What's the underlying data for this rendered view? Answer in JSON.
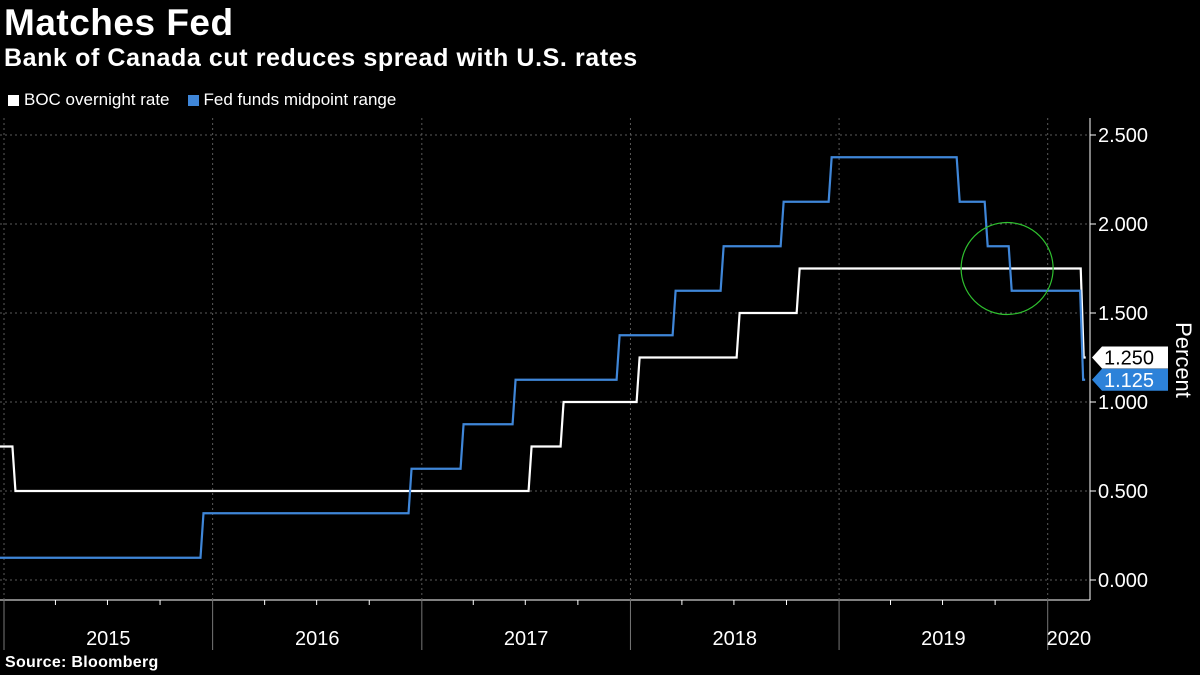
{
  "title": "Matches Fed",
  "subtitle": "Bank of Canada cut reduces spread with U.S. rates",
  "source": "Source: Bloomberg",
  "colors": {
    "boc": "#ffffff",
    "fed": "#3f86d8",
    "highlight": "#2fc02f",
    "grid": "#5a5a5a"
  },
  "chart_data": {
    "type": "line",
    "step": true,
    "ylabel": "Percent",
    "ylim": [
      0,
      2.5
    ],
    "yticks": [
      "0.000",
      "0.500",
      "1.000",
      "1.500",
      "2.000",
      "2.500"
    ],
    "x_range": [
      "2014-12-25",
      "2020-03-15"
    ],
    "x_year_labels": [
      "2015",
      "2016",
      "2017",
      "2018",
      "2019",
      "2020"
    ],
    "grid": true,
    "legend_position": "top-left",
    "series": [
      {
        "name": "BOC overnight rate",
        "last_label": "1.250",
        "points": [
          [
            "2014-12-25",
            0.75
          ],
          [
            "2015-01-21",
            0.5
          ],
          [
            "2016-12-31",
            0.5
          ],
          [
            "2017-07-12",
            0.75
          ],
          [
            "2017-09-06",
            1.0
          ],
          [
            "2018-01-17",
            1.25
          ],
          [
            "2018-07-11",
            1.5
          ],
          [
            "2018-10-24",
            1.75
          ],
          [
            "2020-03-04",
            1.25
          ]
        ]
      },
      {
        "name": "Fed funds midpoint range",
        "last_label": "1.125",
        "points": [
          [
            "2014-12-25",
            0.125
          ],
          [
            "2015-12-16",
            0.375
          ],
          [
            "2016-12-14",
            0.625
          ],
          [
            "2017-03-15",
            0.875
          ],
          [
            "2017-06-14",
            1.125
          ],
          [
            "2017-12-13",
            1.375
          ],
          [
            "2018-03-21",
            1.625
          ],
          [
            "2018-06-13",
            1.875
          ],
          [
            "2018-09-26",
            2.125
          ],
          [
            "2018-12-19",
            2.375
          ],
          [
            "2019-07-31",
            2.125
          ],
          [
            "2019-09-18",
            1.875
          ],
          [
            "2019-10-30",
            1.625
          ],
          [
            "2020-03-03",
            1.125
          ]
        ]
      }
    ],
    "annotation": {
      "type": "circle",
      "center": [
        "2019-10-22",
        1.75
      ]
    }
  }
}
